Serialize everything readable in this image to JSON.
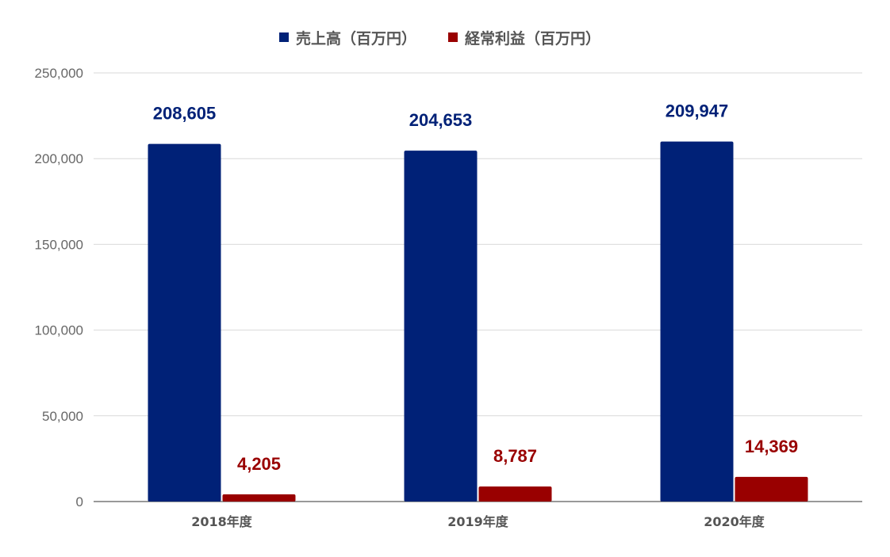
{
  "chart_data": {
    "type": "bar",
    "categories": [
      "2018年度",
      "2019年度",
      "2020年度"
    ],
    "series": [
      {
        "name": "売上高（百万円）",
        "color": "#002177",
        "values": [
          208605,
          204653,
          209947
        ],
        "labels": [
          "208,605",
          "204,653",
          "209,947"
        ]
      },
      {
        "name": "経常利益（百万円）",
        "color": "#990000",
        "values": [
          4205,
          8787,
          14369
        ],
        "labels": [
          "4,205",
          "8,787",
          "14,369"
        ]
      }
    ],
    "ylim": [
      0,
      250000
    ],
    "yticks": [
      {
        "value": 0,
        "label": "0"
      },
      {
        "value": 50000,
        "label": "50,000"
      },
      {
        "value": 100000,
        "label": "100,000"
      },
      {
        "value": 150000,
        "label": "150,000"
      },
      {
        "value": 200000,
        "label": "200,000"
      },
      {
        "value": 250000,
        "label": "250,000"
      }
    ],
    "grid": true,
    "legend_position": "top-center"
  }
}
